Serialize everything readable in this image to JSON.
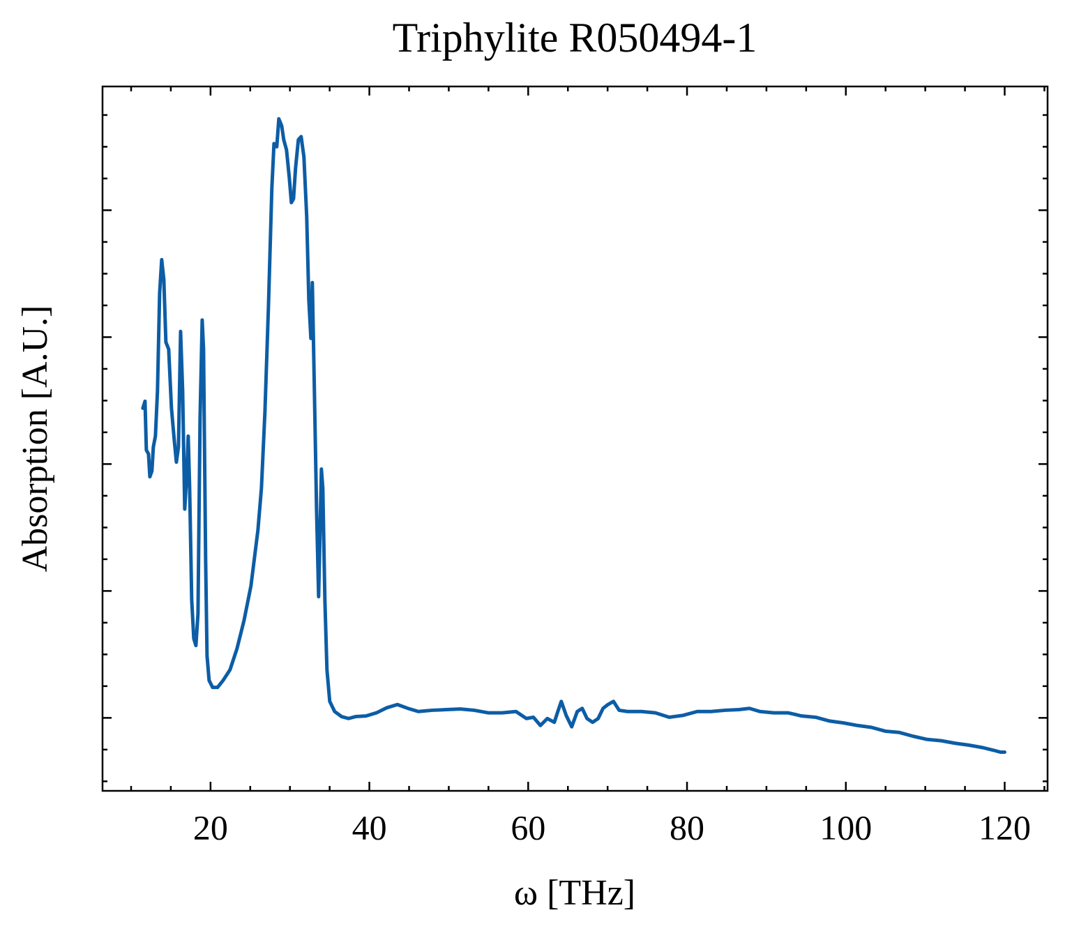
{
  "chart_data": {
    "type": "line",
    "title": "Triphylite R050494-1",
    "xlabel": "ω [THz]",
    "ylabel": "Absorption [A.U.]",
    "color": "#0c5da5",
    "xlim": [
      6.4,
      125.4
    ],
    "xticks": [
      20,
      40,
      60,
      80,
      100,
      120
    ],
    "ylim": [
      -0.115,
      0.995
    ],
    "yticks": [
      0,
      0.2,
      0.4,
      0.6,
      0.8
    ],
    "ytick_labels": false,
    "minor_ticks": true,
    "x": [
      11.48,
      11.75,
      11.92,
      12.19,
      12.36,
      12.62,
      12.8,
      13.06,
      13.32,
      13.59,
      13.85,
      14.12,
      14.38,
      14.73,
      15.08,
      15.43,
      15.7,
      15.96,
      16.23,
      16.49,
      16.75,
      17.01,
      17.19,
      17.37,
      17.63,
      17.89,
      18.16,
      18.42,
      18.68,
      18.95,
      19.12,
      19.38,
      19.56,
      19.82,
      20.26,
      20.88,
      21.58,
      22.46,
      23.33,
      24.21,
      25.09,
      25.97,
      26.41,
      26.85,
      27.29,
      27.72,
      27.99,
      28.34,
      28.6,
      28.96,
      29.22,
      29.57,
      29.92,
      30.18,
      30.45,
      30.71,
      31.06,
      31.41,
      31.76,
      32.11,
      32.38,
      32.64,
      32.82,
      33.08,
      33.35,
      33.61,
      33.78,
      33.96,
      34.14,
      34.4,
      34.66,
      35.01,
      35.63,
      36.51,
      37.38,
      38.26,
      39.58,
      40.9,
      42.21,
      43.53,
      44.85,
      46.17,
      47.92,
      49.68,
      51.44,
      53.19,
      54.95,
      56.71,
      58.46,
      59.78,
      60.66,
      61.54,
      62.41,
      63.29,
      63.73,
      64.17,
      64.78,
      65.48,
      66.18,
      66.8,
      67.41,
      68.11,
      68.81,
      69.43,
      70.04,
      70.74,
      71.45,
      72.5,
      74.26,
      76.01,
      77.77,
      79.52,
      81.28,
      83.03,
      84.79,
      86.54,
      87.86,
      89.18,
      90.93,
      92.69,
      94.45,
      96.2,
      97.96,
      99.72,
      101.47,
      103.23,
      104.98,
      106.74,
      108.49,
      110.25,
      112.01,
      113.76,
      115.52,
      117.28,
      118.59,
      119.47,
      120.0
    ],
    "values": [
      0.488,
      0.499,
      0.422,
      0.416,
      0.38,
      0.389,
      0.427,
      0.444,
      0.515,
      0.669,
      0.722,
      0.691,
      0.592,
      0.581,
      0.488,
      0.438,
      0.403,
      0.427,
      0.609,
      0.515,
      0.329,
      0.384,
      0.444,
      0.362,
      0.186,
      0.125,
      0.114,
      0.164,
      0.471,
      0.627,
      0.581,
      0.252,
      0.098,
      0.059,
      0.048,
      0.048,
      0.059,
      0.076,
      0.109,
      0.153,
      0.208,
      0.296,
      0.362,
      0.482,
      0.647,
      0.834,
      0.905,
      0.9,
      0.944,
      0.933,
      0.911,
      0.895,
      0.851,
      0.812,
      0.818,
      0.867,
      0.911,
      0.916,
      0.884,
      0.79,
      0.658,
      0.598,
      0.686,
      0.515,
      0.329,
      0.191,
      0.285,
      0.392,
      0.362,
      0.186,
      0.076,
      0.026,
      0.01,
      0.002,
      -0.001,
      0.002,
      0.003,
      0.008,
      0.016,
      0.021,
      0.015,
      0.01,
      0.012,
      0.013,
      0.014,
      0.012,
      0.008,
      0.008,
      0.01,
      -0.001,
      0.001,
      -0.012,
      -0.001,
      -0.007,
      0.01,
      0.026,
      0.004,
      -0.014,
      0.01,
      0.015,
      -0.001,
      -0.007,
      -0.001,
      0.015,
      0.021,
      0.026,
      0.012,
      0.01,
      0.01,
      0.008,
      0.001,
      0.004,
      0.01,
      0.01,
      0.012,
      0.013,
      0.015,
      0.01,
      0.008,
      0.008,
      0.003,
      0.001,
      -0.005,
      -0.008,
      -0.012,
      -0.015,
      -0.021,
      -0.023,
      -0.029,
      -0.034,
      -0.036,
      -0.04,
      -0.043,
      -0.047,
      -0.051,
      -0.054,
      -0.054
    ]
  }
}
